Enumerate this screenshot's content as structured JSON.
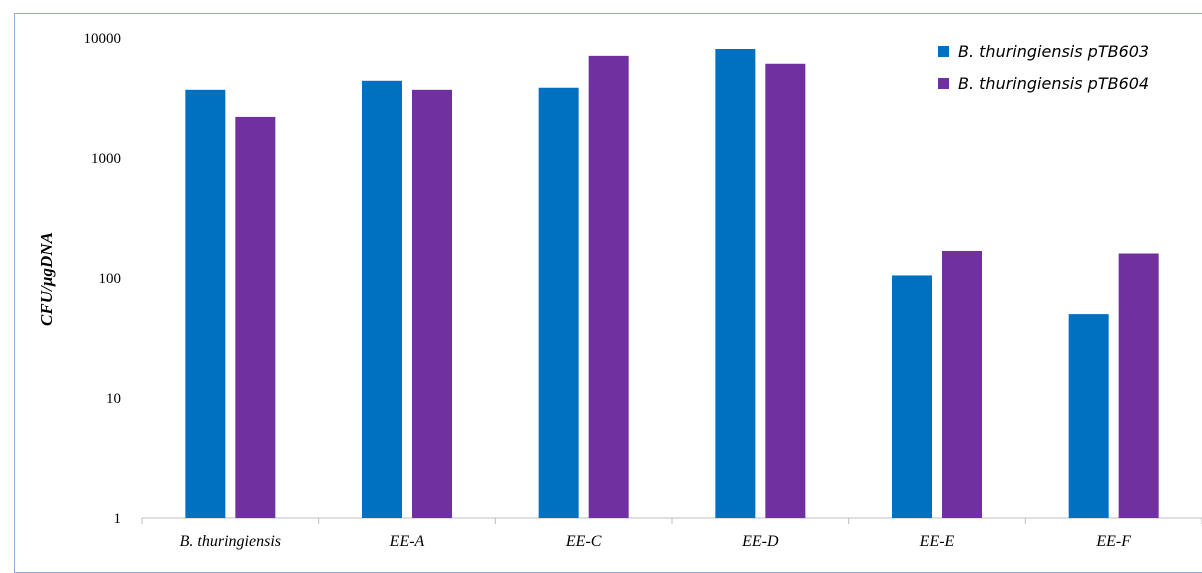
{
  "chart_data": {
    "type": "bar",
    "title": "",
    "xlabel": "",
    "ylabel": "CFU/µgDNA",
    "yscale": "log",
    "ylim": [
      1,
      10000
    ],
    "yticks": [
      "1",
      "10",
      "100",
      "1000",
      "10000"
    ],
    "categories": [
      "B. thuringiensis",
      "EE-A",
      "EE-C",
      "EE-D",
      "EE-E",
      "EE-F"
    ],
    "series": [
      {
        "name": "B. thuringiensis pTB603",
        "color": "#0070c0",
        "values": [
          3700,
          4400,
          3850,
          8100,
          105,
          50
        ]
      },
      {
        "name": "B. thuringiensis pTB604",
        "color": "#7030a0",
        "values": [
          2200,
          3700,
          7100,
          6100,
          168,
          160
        ]
      }
    ],
    "grid": false,
    "legend_position": "top-right"
  }
}
